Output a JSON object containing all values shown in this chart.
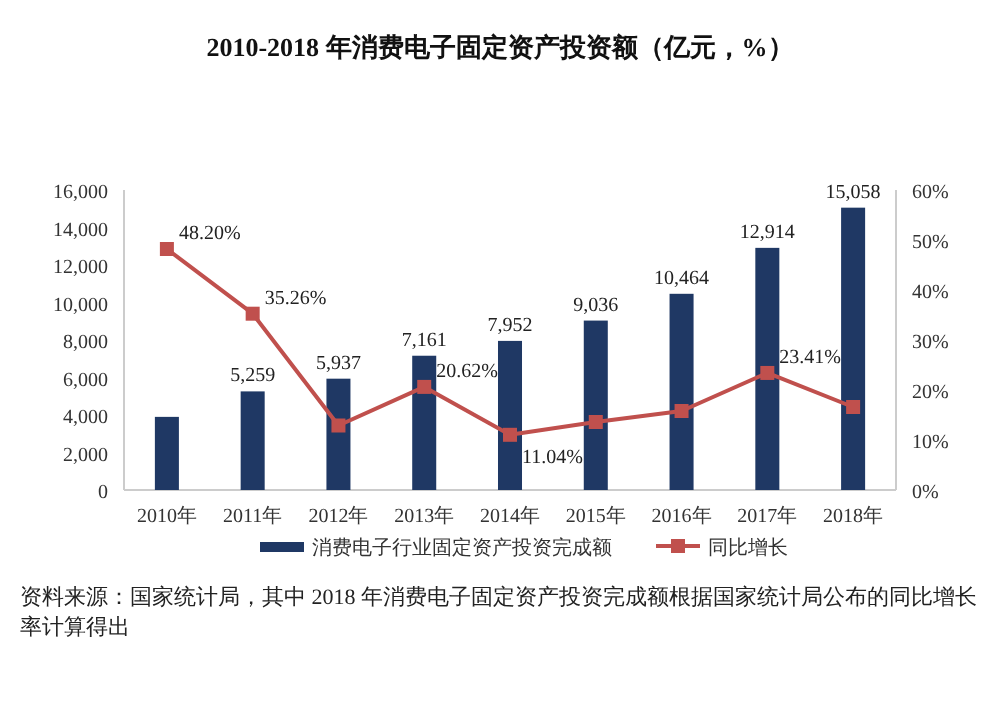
{
  "chart_data": {
    "type": "bar",
    "title": "2010-2018 年消费电子固定资产投资额（亿元，%）",
    "categories": [
      "2010年",
      "2011年",
      "2012年",
      "2013年",
      "2014年",
      "2015年",
      "2016年",
      "2017年",
      "2018年"
    ],
    "series": [
      {
        "name": "消费电子行业固定资产投资完成额",
        "color": "#1f3864",
        "values": [
          3900,
          5259,
          5937,
          7161,
          7952,
          9036,
          10464,
          12914,
          15058
        ],
        "value_labels": [
          null,
          "5,259",
          "5,937",
          "7,161",
          "7,952",
          "9,036",
          "10,464",
          "12,914",
          "15,058"
        ]
      },
      {
        "name": "同比增长",
        "type": "line",
        "axis": "y2",
        "color": "#c0504d",
        "marker": "square",
        "values": [
          48.2,
          35.26,
          12.9,
          20.62,
          11.04,
          13.6,
          15.8,
          23.41,
          16.6
        ],
        "value_labels": [
          "48.20%",
          "35.26%",
          null,
          "20.62%",
          "11.04%",
          null,
          null,
          "23.41%",
          null
        ]
      }
    ],
    "ylim": [
      0,
      16000
    ],
    "yticks": [
      0,
      {
        "value": 2000,
        "label": "2,000"
      },
      {
        "value": 4000,
        "label": "4,000"
      },
      {
        "value": 6000,
        "label": "6,000"
      },
      {
        "value": 8000,
        "label": "8,000"
      },
      {
        "value": 10000,
        "label": "10,000"
      },
      {
        "value": 12000,
        "label": "12,000"
      },
      {
        "value": 14000,
        "label": "14,000"
      },
      {
        "value": 16000,
        "label": "16,000"
      }
    ],
    "y2lim": [
      0,
      60
    ],
    "y2ticks": [
      {
        "value": 0,
        "label": "0%"
      },
      {
        "value": 10,
        "label": "10%"
      },
      {
        "value": 20,
        "label": "20%"
      },
      {
        "value": 30,
        "label": "30%"
      },
      {
        "value": 40,
        "label": "40%"
      },
      {
        "value": 50,
        "label": "50%"
      },
      {
        "value": 60,
        "label": "60%"
      }
    ],
    "legend": "bottom",
    "grid": false,
    "annotations": [
      "资料来源：国家统计局，其中 2018 年消费电子固定资产投资完成额根据国家统计局公布的同比增长率计算得出"
    ]
  }
}
